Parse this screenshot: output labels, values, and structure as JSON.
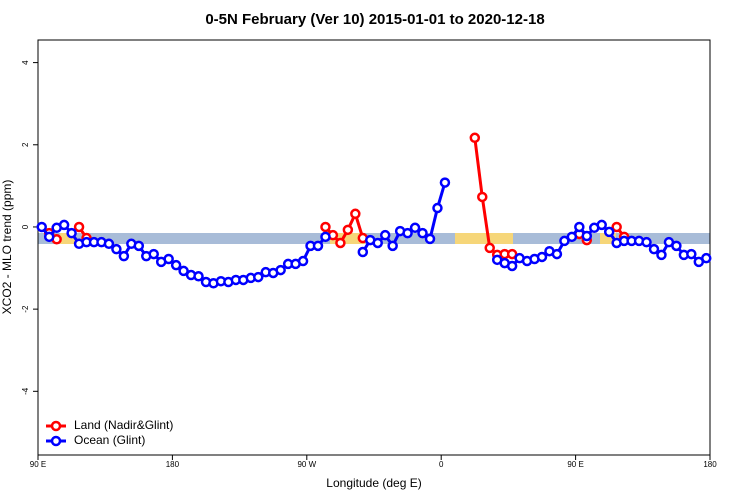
{
  "chart_data": {
    "type": "line",
    "title": "0-5N February (Ver 10)   2015-01-01 to 2020-12-18",
    "x_label": "Longitude (deg E)",
    "y_label": "XCO2 - MLO trend (ppm)",
    "xlim": [
      90,
      540
    ],
    "ylim": [
      -5.55,
      4.55
    ],
    "xticks": [
      {
        "value": 90,
        "label": "90 E"
      },
      180,
      {
        "value": 270,
        "label": "90 W"
      },
      {
        "value": 360,
        "label": "0"
      },
      {
        "value": 450,
        "label": "90 E"
      },
      {
        "value": 540,
        "label": "180"
      }
    ],
    "yticks": [
      -4,
      -2,
      0,
      2,
      4
    ],
    "legend": "bottom-left",
    "x": [
      92.5,
      97.5,
      102.5,
      107.5,
      112.5,
      117.5,
      122.5,
      127.5,
      132.5,
      137.5,
      142.5,
      147.5,
      152.5,
      157.5,
      162.5,
      167.5,
      172.5,
      177.5,
      182.5,
      187.5,
      192.5,
      197.5,
      202.5,
      207.5,
      212.5,
      217.5,
      222.5,
      227.5,
      232.5,
      237.5,
      242.5,
      247.5,
      252.5,
      257.5,
      262.5,
      267.5,
      272.5,
      277.5,
      282.5,
      287.5,
      292.5,
      297.5,
      302.5,
      307.5,
      312.5,
      317.5,
      322.5,
      327.5,
      332.5,
      337.5,
      342.5,
      347.5,
      352.5,
      357.5,
      362.5,
      367.5,
      372.5,
      377.5,
      382.5,
      387.5,
      392.5,
      397.5,
      402.5,
      407.5,
      412.5,
      417.5,
      422.5,
      427.5,
      432.5,
      437.5,
      442.5,
      447.5,
      452.5,
      457.5,
      462.5,
      467.5,
      472.5,
      477.5,
      482.5,
      487.5,
      492.5,
      497.5,
      502.5,
      507.5,
      512.5,
      517.5,
      522.5,
      527.5,
      532.5,
      537.5
    ],
    "series": [
      {
        "name": "Land (Nadir&Glint)",
        "color": "#ff0000",
        "values": [
          null,
          -0.15,
          -0.3,
          null,
          null,
          0.0,
          -0.27,
          null,
          null,
          null,
          null,
          null,
          null,
          null,
          null,
          null,
          null,
          null,
          null,
          null,
          null,
          null,
          null,
          null,
          null,
          null,
          null,
          null,
          null,
          null,
          null,
          null,
          null,
          null,
          null,
          null,
          null,
          null,
          0.0,
          -0.2,
          -0.39,
          -0.07,
          0.32,
          -0.27,
          null,
          null,
          null,
          null,
          null,
          null,
          null,
          null,
          null,
          null,
          null,
          null,
          null,
          null,
          2.17,
          0.73,
          -0.51,
          -0.68,
          -0.66,
          -0.66,
          null,
          null,
          null,
          null,
          null,
          null,
          null,
          null,
          -0.17,
          -0.32,
          null,
          null,
          null,
          0.0,
          -0.24,
          null,
          null,
          null,
          null,
          null,
          null,
          null,
          null,
          null,
          null,
          null
        ]
      },
      {
        "name": "Ocean (Glint)",
        "color": "#0000ff",
        "values": [
          0.0,
          -0.24,
          -0.02,
          0.05,
          -0.15,
          -0.41,
          -0.37,
          -0.37,
          -0.37,
          -0.41,
          -0.54,
          -0.71,
          -0.41,
          -0.46,
          -0.71,
          -0.66,
          -0.85,
          -0.78,
          -0.93,
          -1.07,
          -1.17,
          -1.2,
          -1.34,
          -1.37,
          -1.32,
          -1.34,
          -1.29,
          -1.29,
          -1.24,
          -1.22,
          -1.1,
          -1.12,
          -1.05,
          -0.9,
          -0.9,
          -0.83,
          -0.46,
          -0.46,
          -0.24,
          null,
          null,
          null,
          null,
          -0.61,
          -0.32,
          -0.39,
          -0.2,
          -0.46,
          -0.1,
          -0.15,
          -0.02,
          -0.15,
          -0.29,
          0.46,
          1.08,
          null,
          null,
          null,
          null,
          null,
          null,
          -0.8,
          -0.88,
          -0.95,
          -0.76,
          -0.83,
          -0.78,
          -0.73,
          -0.59,
          -0.66,
          -0.34,
          -0.24,
          0.0,
          -0.22,
          -0.02,
          0.05,
          -0.12,
          -0.39,
          -0.34,
          -0.34,
          -0.34,
          -0.37,
          -0.54,
          -0.68,
          -0.37,
          -0.46,
          -0.68,
          -0.66,
          -0.85,
          -0.76
        ]
      }
    ]
  }
}
